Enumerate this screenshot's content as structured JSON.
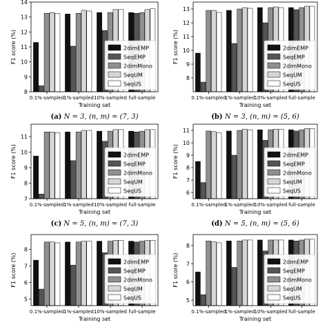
{
  "chart_data": [
    {
      "type": "bar",
      "caption": {
        "letter": "(a)",
        "text": "N = 3, (n, m) = (7, 3)"
      },
      "xlabel": "Training set",
      "ylabel": "F1 score (%)",
      "categories": [
        "0.1%-sampled",
        "1%-sampled",
        "10%-sampled",
        "full-sample"
      ],
      "ylim": [
        8,
        14
      ],
      "yticks": [
        8,
        9,
        10,
        11,
        12,
        13,
        14
      ],
      "legend_position": "lower right",
      "series": [
        {
          "name": "2dimEMP",
          "color": "#111111",
          "values": [
            11.3,
            13.2,
            13.3,
            13.3
          ]
        },
        {
          "name": "SeqEMP",
          "color": "#555555",
          "values": [
            8.4,
            11.05,
            12.1,
            13.25
          ]
        },
        {
          "name": "2dimMono",
          "color": "#8f8f8f",
          "values": [
            13.25,
            13.25,
            13.3,
            13.3
          ]
        },
        {
          "name": "SeqUM",
          "color": "#d6d6d6",
          "values": [
            13.3,
            13.45,
            13.5,
            13.5
          ]
        },
        {
          "name": "SeqUS",
          "color": "#ffffff",
          "values": [
            13.25,
            13.4,
            13.5,
            13.55
          ]
        }
      ]
    },
    {
      "type": "bar",
      "caption": {
        "letter": "(b)",
        "text": "N = 3, (n, m) = (5, 6)"
      },
      "xlabel": "Training set",
      "ylabel": "F1 score (%)",
      "categories": [
        "0.1%-sampled",
        "1%-sampled",
        "10%-sampled",
        "full-sample"
      ],
      "ylim": [
        7,
        13.5
      ],
      "yticks": [
        8,
        9,
        10,
        11,
        12,
        13
      ],
      "legend_position": "lower right",
      "series": [
        {
          "name": "2dimEMP",
          "color": "#111111",
          "values": [
            9.8,
            12.9,
            13.1,
            13.1
          ]
        },
        {
          "name": "SeqEMP",
          "color": "#555555",
          "values": [
            7.7,
            10.5,
            12.0,
            12.95
          ]
        },
        {
          "name": "2dimMono",
          "color": "#8f8f8f",
          "values": [
            12.9,
            13.0,
            13.1,
            13.1
          ]
        },
        {
          "name": "SeqUM",
          "color": "#d6d6d6",
          "values": [
            12.9,
            13.1,
            13.15,
            13.2
          ]
        },
        {
          "name": "SeqUS",
          "color": "#ffffff",
          "values": [
            12.75,
            13.05,
            13.1,
            13.2
          ]
        }
      ]
    },
    {
      "type": "bar",
      "caption": {
        "letter": "(c)",
        "text": "N = 5, (n, m) = (7, 3)"
      },
      "xlabel": "Training set",
      "ylabel": "F1 score (%)",
      "categories": [
        "0.1%-sampled",
        "1%-sampled",
        "10%-sampled",
        "full-sample"
      ],
      "ylim": [
        7,
        11.8
      ],
      "yticks": [
        7,
        8,
        9,
        10,
        11
      ],
      "legend_position": "lower right",
      "series": [
        {
          "name": "2dimEMP",
          "color": "#111111",
          "values": [
            9.75,
            11.3,
            11.35,
            11.35
          ]
        },
        {
          "name": "SeqEMP",
          "color": "#555555",
          "values": [
            7.3,
            9.45,
            10.7,
            11.3
          ]
        },
        {
          "name": "2dimMono",
          "color": "#8f8f8f",
          "values": [
            11.3,
            11.3,
            11.35,
            11.35
          ]
        },
        {
          "name": "SeqUM",
          "color": "#d6d6d6",
          "values": [
            11.3,
            11.4,
            11.45,
            11.45
          ]
        },
        {
          "name": "SeqUS",
          "color": "#ffffff",
          "values": [
            11.25,
            11.4,
            11.45,
            11.45
          ]
        }
      ]
    },
    {
      "type": "bar",
      "caption": {
        "letter": "(d)",
        "text": "N = 5, (n, m) = (5, 6)"
      },
      "xlabel": "Training set",
      "ylabel": "F1 score (%)",
      "categories": [
        "0.1%-sampled",
        "1%-sampled",
        "10%-sampled",
        "full-sample"
      ],
      "ylim": [
        5.5,
        11.5
      ],
      "yticks": [
        6,
        7,
        8,
        9,
        10,
        11
      ],
      "legend_position": "lower right",
      "series": [
        {
          "name": "2dimEMP",
          "color": "#111111",
          "values": [
            8.5,
            10.95,
            11.05,
            11.05
          ]
        },
        {
          "name": "SeqEMP",
          "color": "#555555",
          "values": [
            6.8,
            9.0,
            10.2,
            10.95
          ]
        },
        {
          "name": "2dimMono",
          "color": "#8f8f8f",
          "values": [
            10.95,
            11.0,
            11.05,
            11.05
          ]
        },
        {
          "name": "SeqUM",
          "color": "#d6d6d6",
          "values": [
            10.9,
            11.1,
            11.1,
            11.15
          ]
        },
        {
          "name": "SeqUS",
          "color": "#ffffff",
          "values": [
            10.8,
            11.05,
            11.1,
            11.15
          ]
        }
      ]
    },
    {
      "type": "bar",
      "caption": null,
      "xlabel": "Training set",
      "ylabel": "F1 score (%)",
      "categories": [
        "0.1%-sampled",
        "1%-sampled",
        "10%-sampled",
        "full-sample"
      ],
      "ylim": [
        4.6,
        8.9
      ],
      "yticks": [
        5,
        6,
        7,
        8
      ],
      "legend_position": "lower right",
      "series": [
        {
          "name": "2dimEMP",
          "color": "#111111",
          "values": [
            7.35,
            8.45,
            8.5,
            8.5
          ]
        },
        {
          "name": "SeqEMP",
          "color": "#555555",
          "values": [
            5.6,
            7.05,
            7.8,
            8.45
          ]
        },
        {
          "name": "2dimMono",
          "color": "#8f8f8f",
          "values": [
            8.45,
            8.45,
            8.5,
            8.5
          ]
        },
        {
          "name": "SeqUM",
          "color": "#d6d6d6",
          "values": [
            8.45,
            8.5,
            8.55,
            8.55
          ]
        },
        {
          "name": "SeqUS",
          "color": "#ffffff",
          "values": [
            8.4,
            8.5,
            8.55,
            8.55
          ]
        }
      ]
    },
    {
      "type": "bar",
      "caption": null,
      "xlabel": "Training set",
      "ylabel": "F1 score (%)",
      "categories": [
        "0.1%-sampled",
        "1%-sampled",
        "10%-sampled",
        "full-sample"
      ],
      "ylim": [
        4.7,
        8.6
      ],
      "yticks": [
        5,
        6,
        7,
        8
      ],
      "legend_position": "lower right",
      "series": [
        {
          "name": "2dimEMP",
          "color": "#111111",
          "values": [
            6.55,
            8.25,
            8.3,
            8.3
          ]
        },
        {
          "name": "SeqEMP",
          "color": "#555555",
          "values": [
            5.3,
            6.8,
            7.7,
            8.25
          ]
        },
        {
          "name": "2dimMono",
          "color": "#8f8f8f",
          "values": [
            8.25,
            8.25,
            8.3,
            8.3
          ]
        },
        {
          "name": "SeqUM",
          "color": "#d6d6d6",
          "values": [
            8.2,
            8.3,
            8.3,
            8.35
          ]
        },
        {
          "name": "SeqUS",
          "color": "#ffffff",
          "values": [
            8.15,
            8.3,
            8.3,
            8.35
          ]
        }
      ]
    }
  ]
}
